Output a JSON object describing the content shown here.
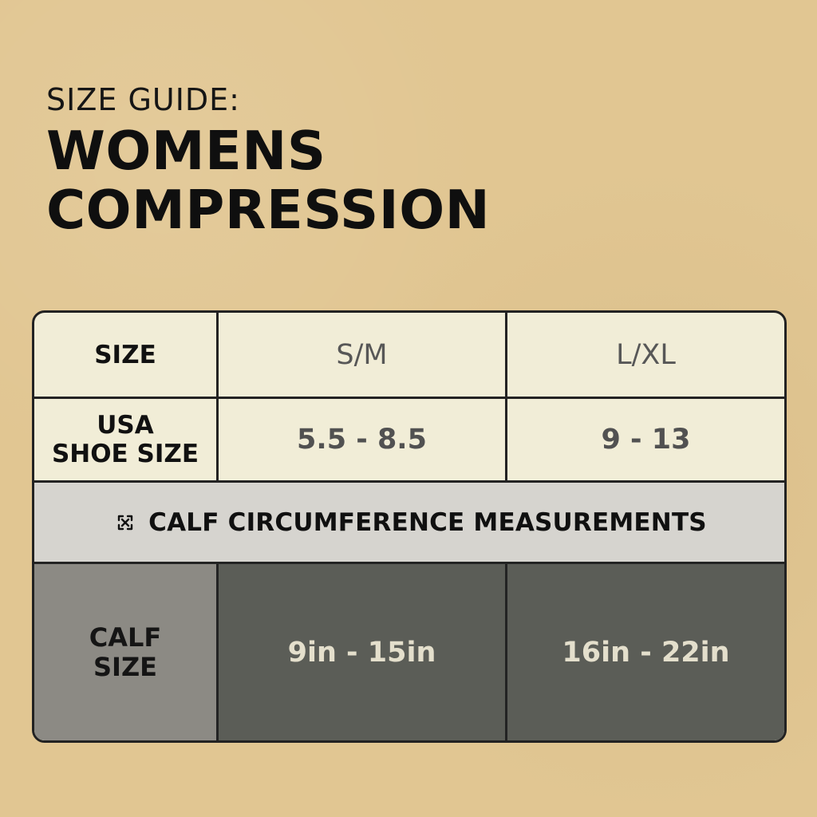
{
  "header": {
    "kicker": "SIZE GUIDE:",
    "title_line_1": "WOMENS",
    "title_line_2": "COMPRESSION"
  },
  "table": {
    "row_1": {
      "label": "SIZE",
      "sm": "S/M",
      "lxl": "L/XL"
    },
    "row_2": {
      "label": "USA\nSHOE SIZE",
      "sm": "5.5 - 8.5",
      "lxl": "9 - 13"
    },
    "section": {
      "icon": "measure-icon",
      "title": "CALF CIRCUMFERENCE MEASUREMENTS"
    },
    "row_3": {
      "label": "CALF\nSIZE",
      "sm": "9in - 15in",
      "lxl": "16in - 22in"
    }
  },
  "colors": {
    "background": "#e1c692",
    "top_rows": "#f1edd7",
    "section_band": "#d6d4cf",
    "calf_label_bg": "#8c8a84",
    "calf_value_bg": "#5b5d57",
    "text_dark": "#111111"
  }
}
